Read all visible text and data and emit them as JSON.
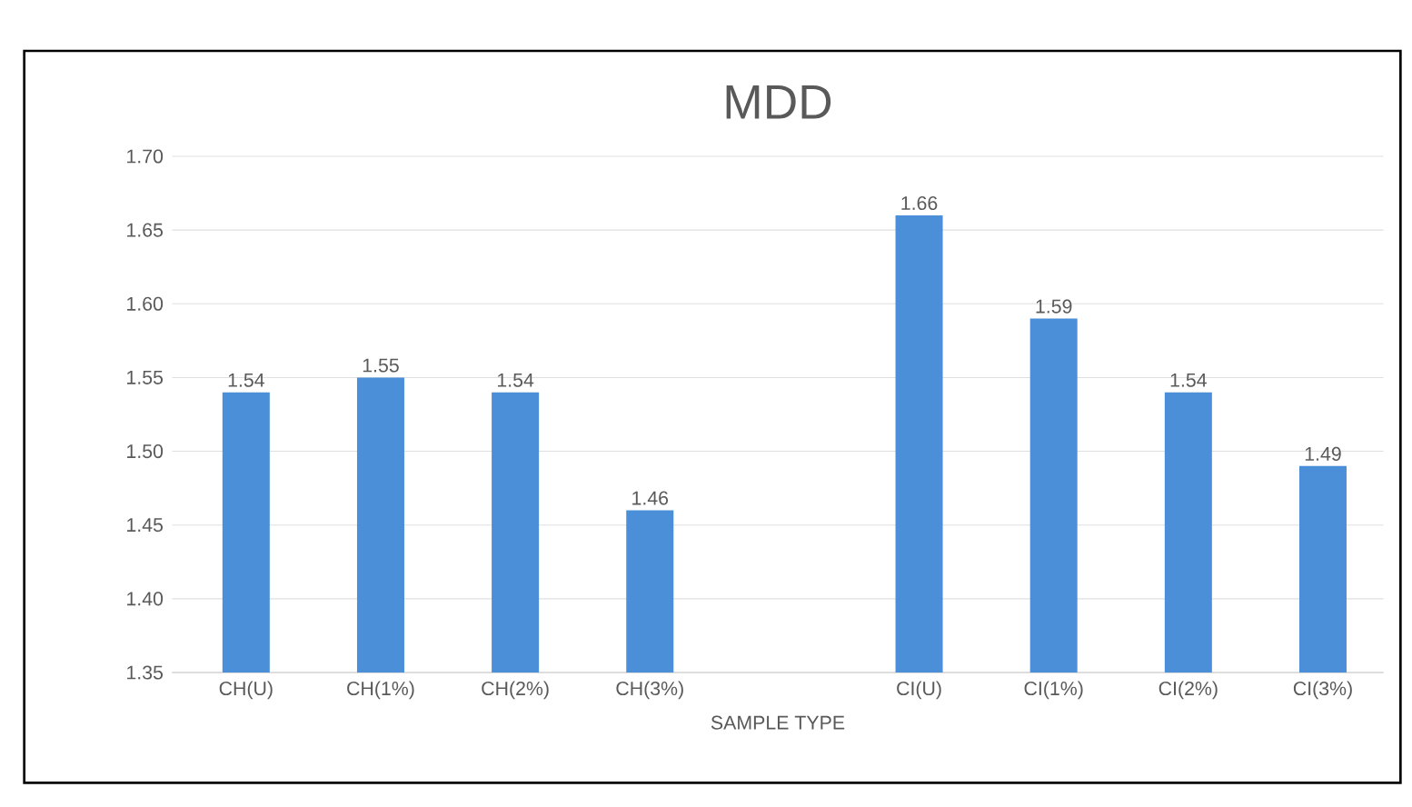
{
  "chart_data": {
    "type": "bar",
    "title": "MDD",
    "xlabel": "SAMPLE TYPE",
    "categories": [
      "CH(U)",
      "CH(1%)",
      "CH(2%)",
      "CH(3%)",
      null,
      "CI(U)",
      "CI(1%)",
      "CI(2%)",
      "CI(3%)"
    ],
    "values": [
      1.54,
      1.55,
      1.54,
      1.46,
      null,
      1.66,
      1.59,
      1.54,
      1.49
    ],
    "color": "#4a8fd8",
    "ylim": [
      1.35,
      1.7
    ],
    "yticks": [
      {
        "value": 1.35,
        "label": "1.35"
      },
      {
        "value": 1.4,
        "label": "1.40"
      },
      {
        "value": 1.45,
        "label": "1.45"
      },
      {
        "value": 1.5,
        "label": "1.50"
      },
      {
        "value": 1.55,
        "label": "1.55"
      },
      {
        "value": 1.6,
        "label": "1.60"
      },
      {
        "value": 1.65,
        "label": "1.65"
      },
      {
        "value": 1.7,
        "label": "1.70"
      }
    ],
    "grid": "y",
    "data_labels": true
  }
}
